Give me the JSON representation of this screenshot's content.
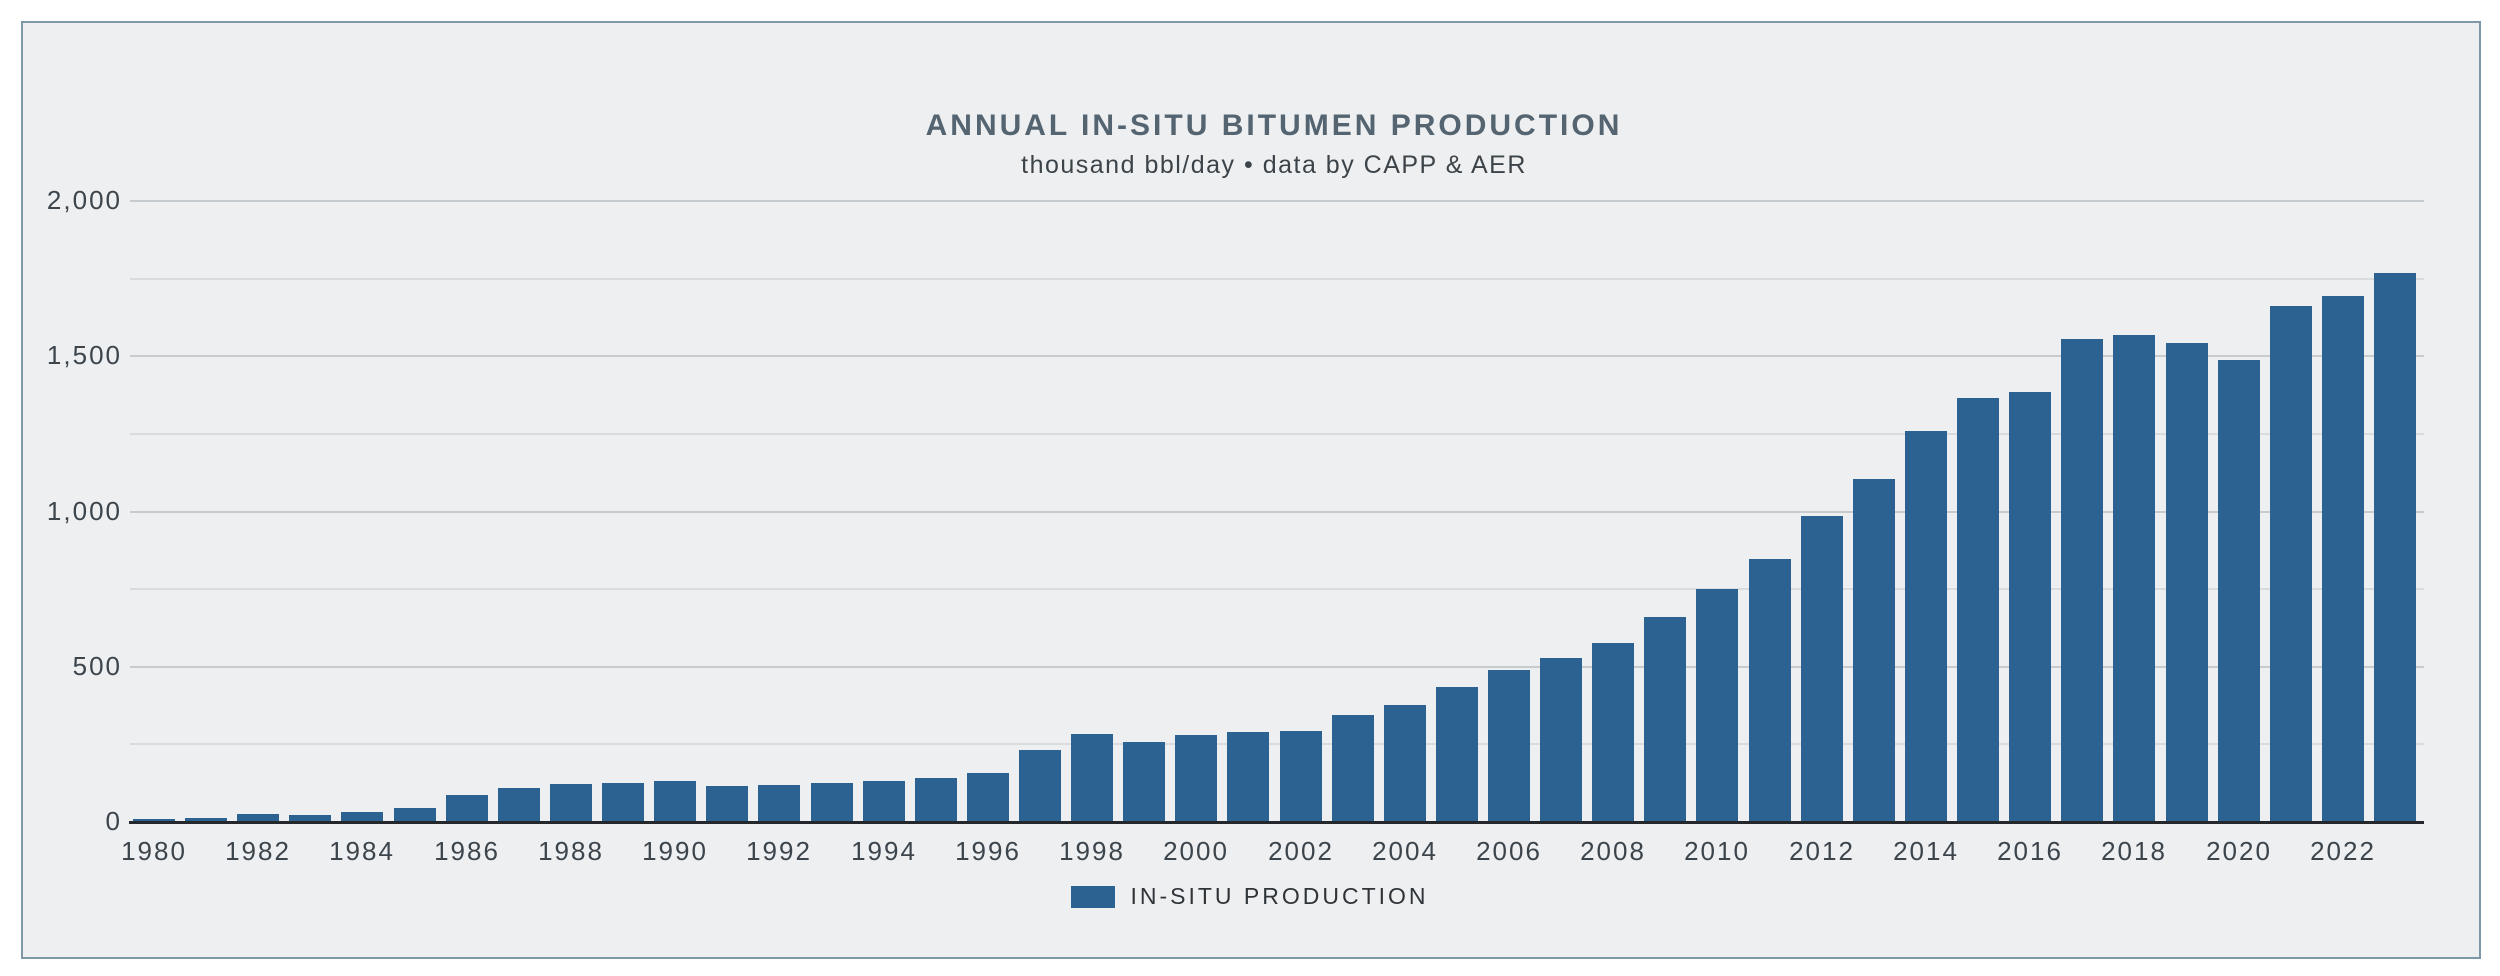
{
  "header": {
    "title": "ANNUAL IN-SITU BITUMEN PRODUCTION",
    "subtitle": "thousand bbl/day • data by CAPP & AER"
  },
  "legend": {
    "label": "IN-SITU PRODUCTION",
    "swatch_color": "#2b6292"
  },
  "colors": {
    "bar": "#2b6292",
    "panel_background": "#edeff1",
    "panel_border": "#7e97a9",
    "axis_line": "#24282c",
    "gridline_major": "#c6cbd0",
    "gridline_minor": "#d9dcdf",
    "title_text": "#546471",
    "tick_text": "#3d454c"
  },
  "chart_data": {
    "type": "bar",
    "title": "ANNUAL IN-SITU BITUMEN PRODUCTION",
    "subtitle": "thousand bbl/day • data by CAPP & AER",
    "ylabel": "thousand bbl/day",
    "series_name": "IN-SITU PRODUCTION",
    "categories": [
      "1980",
      "1981",
      "1982",
      "1983",
      "1984",
      "1985",
      "1986",
      "1987",
      "1988",
      "1989",
      "1990",
      "1991",
      "1992",
      "1993",
      "1994",
      "1995",
      "1996",
      "1997",
      "1998",
      "1999",
      "2000",
      "2001",
      "2002",
      "2003",
      "2004",
      "2005",
      "2006",
      "2007",
      "2008",
      "2009",
      "2010",
      "2011",
      "2012",
      "2013",
      "2014",
      "2015",
      "2016",
      "2017",
      "2018",
      "2019",
      "2020",
      "2021",
      "2022",
      "2023"
    ],
    "values": [
      10,
      14,
      26,
      24,
      31,
      45,
      87,
      111,
      123,
      125,
      131,
      116,
      118,
      125,
      132,
      142,
      157,
      231,
      282,
      257,
      280,
      291,
      293,
      345,
      377,
      435,
      489,
      527,
      577,
      660,
      751,
      846,
      986,
      1105,
      1260,
      1364,
      1385,
      1557,
      1570,
      1544,
      1487,
      1662,
      1694,
      1768
    ],
    "ylim": [
      0,
      2000
    ],
    "gridline_step": 250,
    "ytick_step": 500,
    "ytick_labels": [
      "0",
      "500",
      "1,000",
      "1,500",
      "2,000"
    ],
    "xtick_labels": [
      "1980",
      "1982",
      "1984",
      "1986",
      "1988",
      "1990",
      "1992",
      "1994",
      "1996",
      "1998",
      "2000",
      "2002",
      "2004",
      "2006",
      "2008",
      "2010",
      "2012",
      "2014",
      "2016",
      "2018",
      "2020",
      "2022"
    ],
    "grid": true,
    "legend_position": "bottom",
    "bar_color": "#2b6292"
  }
}
